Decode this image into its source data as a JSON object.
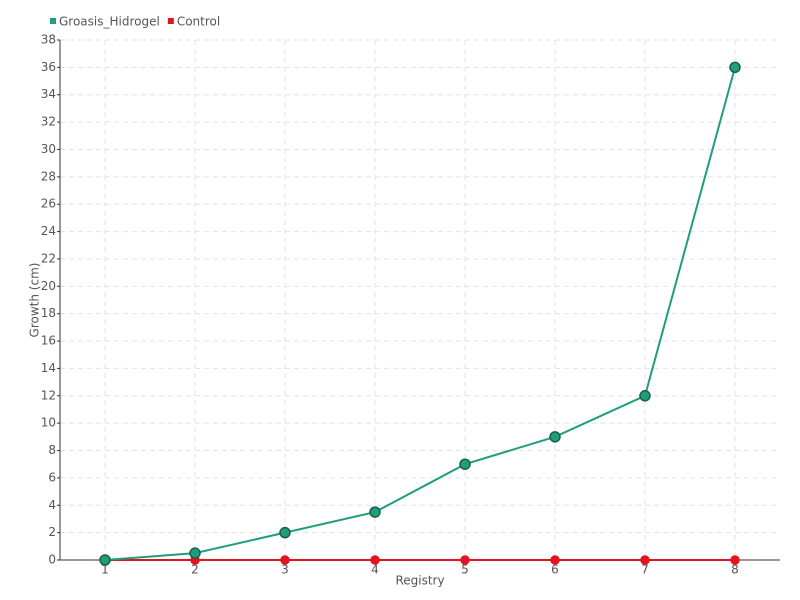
{
  "chart_data": {
    "type": "line",
    "x_label": "Registry",
    "y_label": "Growth (cm)",
    "categories": [
      "1",
      "2",
      "3",
      "4",
      "5",
      "6",
      "7",
      "8"
    ],
    "series": [
      {
        "name": "Groasis_Hidrogel",
        "color": "#1f9e7e",
        "values": [
          0,
          0.5,
          2,
          3.5,
          7,
          9,
          12,
          36
        ]
      },
      {
        "name": "Control",
        "color": "#e3141e",
        "values": [
          0,
          0,
          0,
          0,
          0,
          0,
          0,
          0
        ]
      }
    ],
    "ylim": [
      0,
      38
    ],
    "yticks": [
      0,
      2,
      4,
      6,
      8,
      10,
      12,
      14,
      16,
      18,
      20,
      22,
      24,
      26,
      28,
      30,
      32,
      34,
      36,
      38
    ],
    "grid": true,
    "legend": "top-left"
  }
}
